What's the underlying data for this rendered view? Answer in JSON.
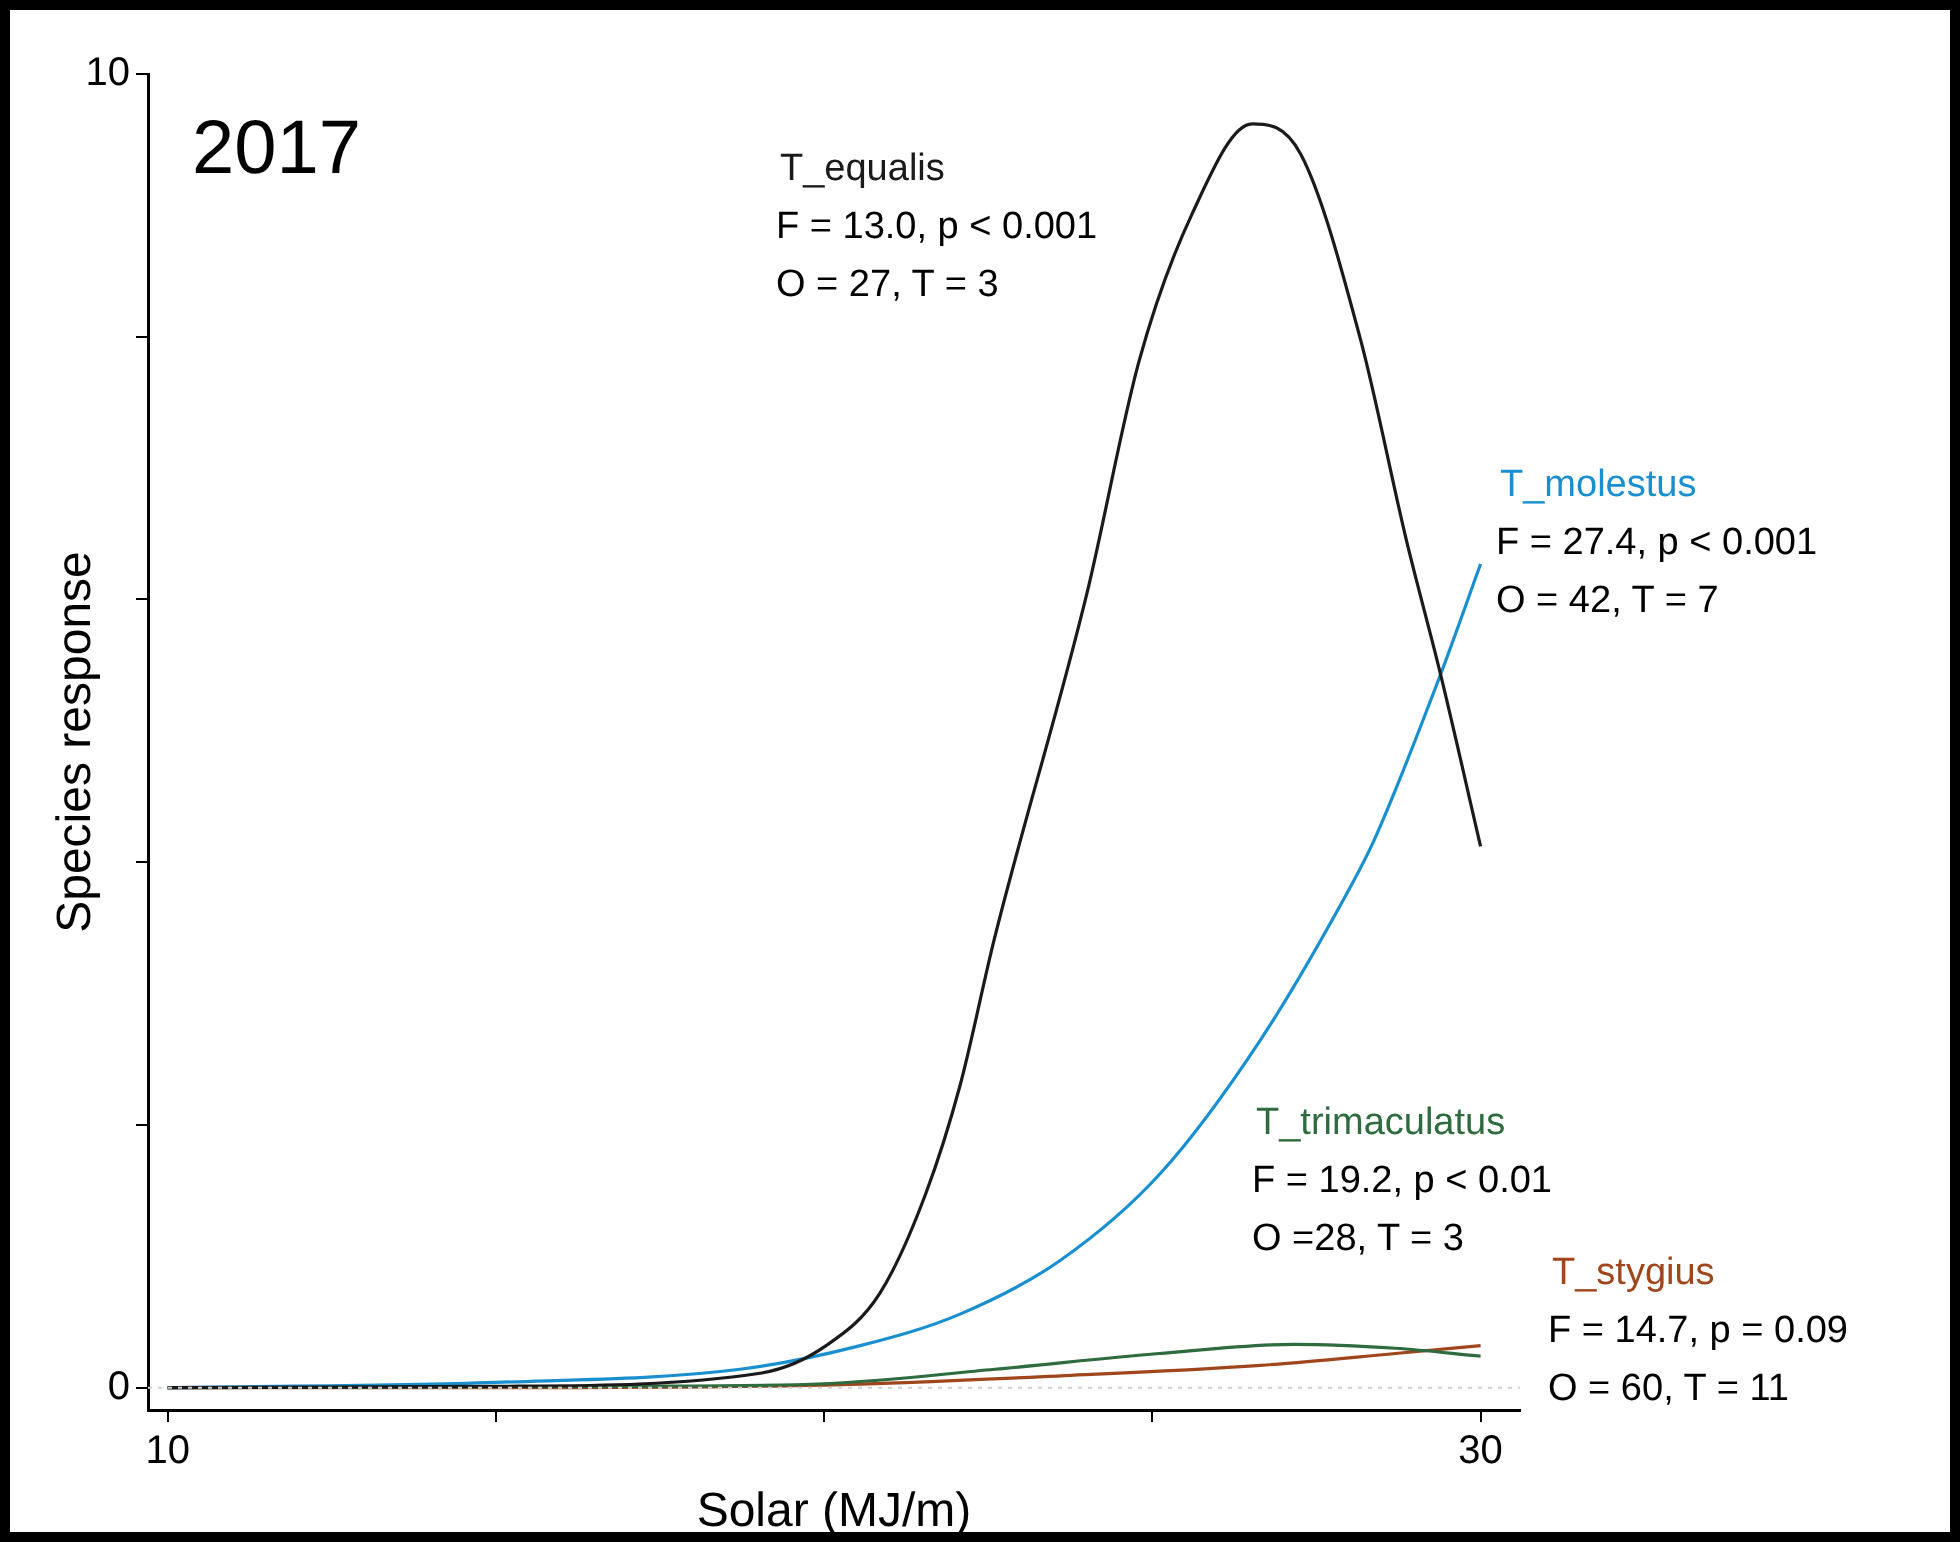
{
  "chart_data": {
    "type": "line",
    "xlabel": "Solar (MJ/m)",
    "ylabel": "Species response",
    "annotations": [
      "2017",
      "F = 13.0, p < 0.001",
      "O = 27, T = 3",
      "F = 27.4, p < 0.001",
      "O = 42, T = 7",
      "F = 19.2, p < 0.01",
      "O =28, T = 3",
      "F = 14.7, p = 0.09",
      "O = 60, T = 11"
    ],
    "xlim": [
      9.7,
      30.6
    ],
    "ylim": [
      -0.17,
      10
    ],
    "xticks": [
      10,
      {
        "value": 15,
        "label": null
      },
      {
        "value": 20,
        "label": null
      },
      {
        "value": 25,
        "label": null
      },
      30
    ],
    "yticks": [
      0,
      {
        "value": 2,
        "label": null
      },
      {
        "value": 4,
        "label": null
      },
      {
        "value": 6,
        "label": null
      },
      {
        "value": 8,
        "label": null
      },
      10
    ],
    "grid": false,
    "legend": false,
    "marker": "none",
    "line_style": "solid",
    "ref_lines": [
      {
        "axis": "y",
        "value": 0,
        "label": null,
        "color": "#d0d0d0",
        "line_style": "dotted"
      }
    ],
    "series": [
      {
        "name": "T_equalis",
        "color": "#1a1a1a",
        "x": [
          10,
          15,
          19.02,
          20.03,
          20.85,
          21.55,
          22.07,
          22.59,
          24.0,
          24.8,
          25.6,
          26.52,
          27.26,
          28.17,
          28.87,
          29.39,
          30
        ],
        "values": [
          0,
          0.01,
          0.11,
          0.32,
          0.72,
          1.48,
          2.3,
          3.41,
          6.04,
          7.82,
          8.93,
          9.62,
          9.39,
          7.98,
          6.45,
          5.43,
          4.12
        ]
      },
      {
        "name": "T_molestus",
        "color": "#1a8fd0",
        "x": [
          10,
          15,
          18.72,
          20.55,
          22.07,
          23.6,
          25.12,
          26.65,
          27.96,
          28.38,
          29.36,
          30
        ],
        "values": [
          0,
          0.04,
          0.14,
          0.32,
          0.56,
          0.97,
          1.63,
          2.65,
          3.76,
          4.17,
          5.39,
          6.27
        ]
      },
      {
        "name": "T_trimaculatus",
        "color": "#2e6b3e",
        "x": [
          10,
          17,
          20,
          22.6,
          25.1,
          27.16,
          28.7,
          30
        ],
        "values": [
          0,
          0.01,
          0.03,
          0.14,
          0.26,
          0.33,
          0.3,
          0.24
        ]
      },
      {
        "name": "T_stygius",
        "color": "#a0461c",
        "x": [
          10,
          15,
          20,
          23.6,
          26.65,
          28.7,
          30
        ],
        "values": [
          0,
          0,
          0.02,
          0.09,
          0.17,
          0.26,
          0.32
        ]
      }
    ]
  }
}
